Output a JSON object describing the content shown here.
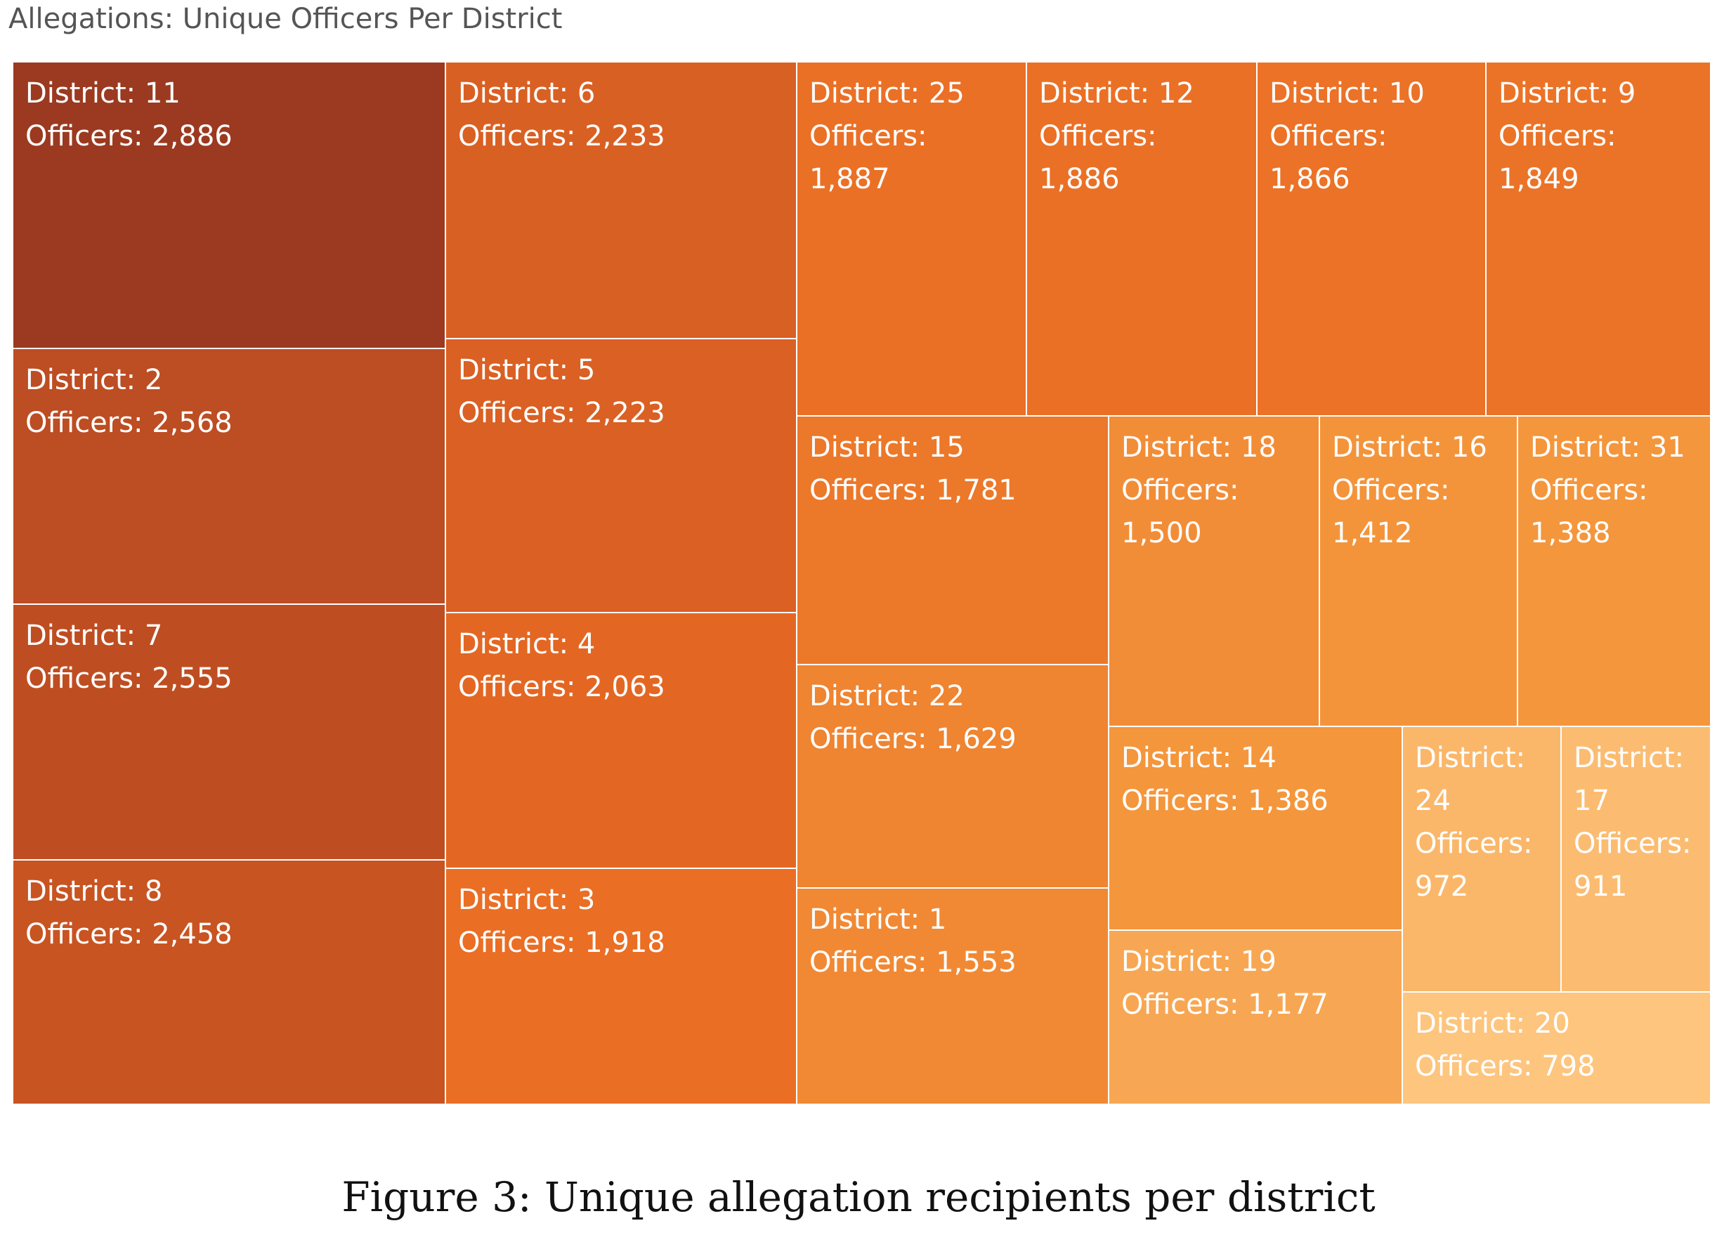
{
  "chart_data": {
    "type": "treemap",
    "title": "Allegations: Unique Officers Per District",
    "label_prefix": "District:",
    "value_prefix": "Officers:",
    "items": [
      {
        "district": "11",
        "officers": 2886,
        "officers_label": "2,886"
      },
      {
        "district": "2",
        "officers": 2568,
        "officers_label": "2,568"
      },
      {
        "district": "7",
        "officers": 2555,
        "officers_label": "2,555"
      },
      {
        "district": "8",
        "officers": 2458,
        "officers_label": "2,458"
      },
      {
        "district": "6",
        "officers": 2233,
        "officers_label": "2,233"
      },
      {
        "district": "5",
        "officers": 2223,
        "officers_label": "2,223"
      },
      {
        "district": "4",
        "officers": 2063,
        "officers_label": "2,063"
      },
      {
        "district": "3",
        "officers": 1918,
        "officers_label": "1,918"
      },
      {
        "district": "25",
        "officers": 1887,
        "officers_label": "1,887"
      },
      {
        "district": "12",
        "officers": 1886,
        "officers_label": "1,886"
      },
      {
        "district": "10",
        "officers": 1866,
        "officers_label": "1,866"
      },
      {
        "district": "9",
        "officers": 1849,
        "officers_label": "1,849"
      },
      {
        "district": "15",
        "officers": 1781,
        "officers_label": "1,781"
      },
      {
        "district": "22",
        "officers": 1629,
        "officers_label": "1,629"
      },
      {
        "district": "1",
        "officers": 1553,
        "officers_label": "1,553"
      },
      {
        "district": "18",
        "officers": 1500,
        "officers_label": "1,500"
      },
      {
        "district": "16",
        "officers": 1412,
        "officers_label": "1,412"
      },
      {
        "district": "31",
        "officers": 1388,
        "officers_label": "1,388"
      },
      {
        "district": "14",
        "officers": 1386,
        "officers_label": "1,386"
      },
      {
        "district": "19",
        "officers": 1177,
        "officers_label": "1,177"
      },
      {
        "district": "24",
        "officers": 972,
        "officers_label": "972"
      },
      {
        "district": "17",
        "officers": 911,
        "officers_label": "911"
      },
      {
        "district": "20",
        "officers": 798,
        "officers_label": "798"
      }
    ],
    "color_scale": {
      "low": "#FDC57E",
      "high": "#9B3A20"
    }
  },
  "caption": "Figure 3: Unique allegation recipients per district"
}
